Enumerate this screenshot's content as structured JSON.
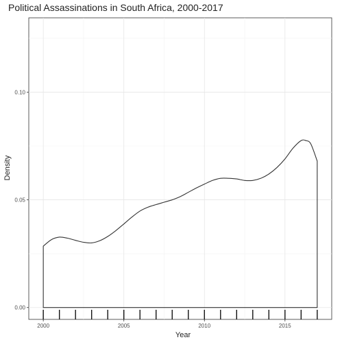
{
  "chart_data": {
    "type": "area",
    "title": "Political Assassinations in South Africa, 2000-2017",
    "xlabel": "Year",
    "ylabel": "Density",
    "xlim": [
      1999.1,
      2017.9
    ],
    "ylim": [
      -0.0055,
      0.1345
    ],
    "x_ticks": [
      2000,
      2005,
      2010,
      2015
    ],
    "x_tick_labels": [
      "2000",
      "2005",
      "2010",
      "2015"
    ],
    "y_ticks": [
      0.0,
      0.05,
      0.1
    ],
    "y_tick_labels": [
      "0.00",
      "0.05",
      "0.10"
    ],
    "grid": true,
    "legend": "none",
    "series": [
      {
        "x": [
          2000,
          2000.5,
          2001,
          2001.5,
          2002,
          2002.5,
          2003,
          2003.5,
          2004,
          2004.5,
          2005,
          2005.5,
          2006,
          2006.5,
          2007,
          2007.5,
          2008,
          2008.5,
          2009,
          2009.5,
          2010,
          2010.5,
          2011,
          2011.5,
          2012,
          2012.5,
          2013,
          2013.5,
          2014,
          2014.5,
          2015,
          2015.5,
          2016,
          2016.3,
          2016.6,
          2017
        ],
        "y": [
          0.0285,
          0.0315,
          0.0327,
          0.0322,
          0.0312,
          0.0303,
          0.03,
          0.031,
          0.033,
          0.0357,
          0.0388,
          0.042,
          0.0448,
          0.0466,
          0.0478,
          0.0489,
          0.05,
          0.0515,
          0.0535,
          0.0555,
          0.0573,
          0.059,
          0.06,
          0.06,
          0.0597,
          0.059,
          0.059,
          0.06,
          0.062,
          0.065,
          0.069,
          0.074,
          0.0775,
          0.0775,
          0.076,
          0.068
        ]
      }
    ],
    "rug": [
      2000,
      2001,
      2002,
      2003,
      2004,
      2005,
      2006,
      2007,
      2008,
      2009,
      2010,
      2011,
      2012,
      2013,
      2014,
      2015,
      2016,
      2017
    ]
  }
}
